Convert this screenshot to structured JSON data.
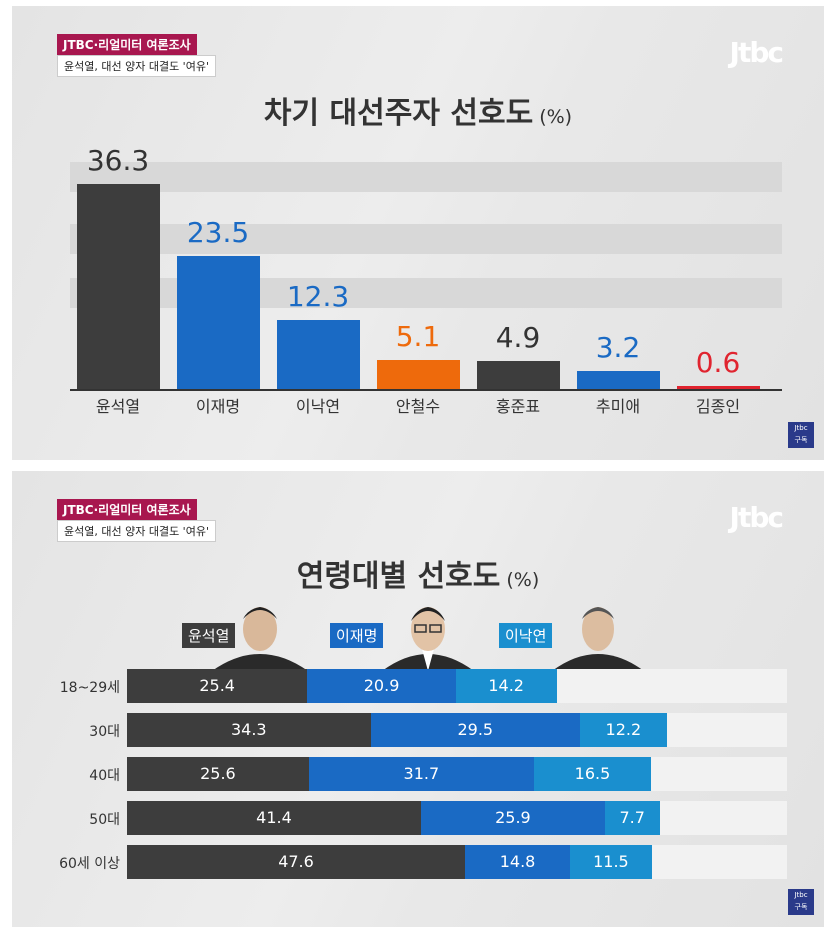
{
  "header": {
    "tag": "JTBC·리얼미터 여론조사",
    "subtitle": "윤석열, 대선 양자 대결도 '여유'",
    "logo": "Jtbc",
    "sublogo_line1": "Jtbc",
    "sublogo_line2": "구독"
  },
  "colors": {
    "dark": "#3d3d3d",
    "blue": "#1a6ac4",
    "light_blue": "#1a8fcf",
    "orange": "#ee6a0c",
    "red": "#e0242f"
  },
  "chart_data": [
    {
      "type": "bar",
      "title": "차기 대선주자 선호도",
      "unit": "(%)",
      "categories": [
        "윤석열",
        "이재명",
        "이낙연",
        "안철수",
        "홍준표",
        "추미애",
        "김종인"
      ],
      "values": [
        36.3,
        23.5,
        12.3,
        5.1,
        4.9,
        3.2,
        0.6
      ],
      "value_labels": [
        "36.3",
        "23.5",
        "12.3",
        "5.1",
        "4.9",
        "3.2",
        "0.6"
      ],
      "bar_colors": [
        "#3d3d3d",
        "#1a6ac4",
        "#1a6ac4",
        "#ee6a0c",
        "#3d3d3d",
        "#1a6ac4",
        "#e0242f"
      ],
      "label_colors": [
        "#333333",
        "#1a6ac4",
        "#1a6ac4",
        "#ee6a0c",
        "#333333",
        "#1a6ac4",
        "#e0242f"
      ],
      "ylim": [
        0,
        40
      ]
    },
    {
      "type": "bar",
      "orientation": "horizontal",
      "stacked": true,
      "title": "연령대별 선호도",
      "unit": "(%)",
      "categories": [
        "18~29세",
        "30대",
        "40대",
        "50대",
        "60세 이상"
      ],
      "series": [
        {
          "name": "윤석열",
          "color": "#3d3d3d",
          "values": [
            25.4,
            34.3,
            25.6,
            41.4,
            47.6
          ],
          "labels": [
            "25.4",
            "34.3",
            "25.6",
            "41.4",
            "47.6"
          ]
        },
        {
          "name": "이재명",
          "color": "#1a6ac4",
          "values": [
            20.9,
            29.5,
            31.7,
            25.9,
            14.8
          ],
          "labels": [
            "20.9",
            "29.5",
            "31.7",
            "25.9",
            "14.8"
          ]
        },
        {
          "name": "이낙연",
          "color": "#1a8fcf",
          "values": [
            14.2,
            12.2,
            16.5,
            7.7,
            11.5
          ],
          "labels": [
            "14.2",
            "12.2",
            "16.5",
            "7.7",
            "11.5"
          ]
        }
      ],
      "xlim": [
        0,
        100
      ]
    }
  ]
}
